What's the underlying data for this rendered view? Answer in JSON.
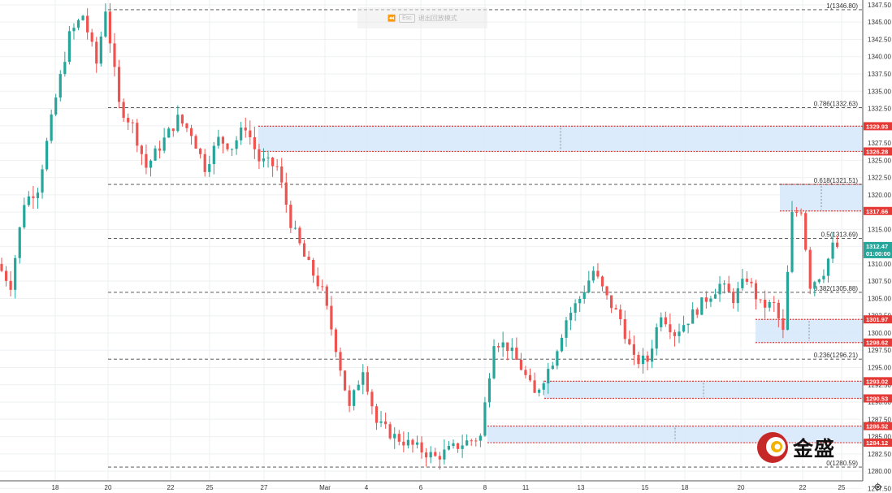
{
  "replay_banner": {
    "key_label": "Esc",
    "text": "退出回放模式"
  },
  "logo": {
    "text": "金盛"
  },
  "colors": {
    "up": "#26a69a",
    "down": "#ef5350",
    "zone_fill": "#d6e8fb",
    "zone_border": "#e53935",
    "tag_bg": "#e53935",
    "price_tag_bg": "#26a69a",
    "dashed": "#444444",
    "grid": "#eef0f2"
  },
  "chart_data": {
    "type": "candlestick",
    "y_axis": {
      "range": [
        1278.6,
        1348.2
      ],
      "ticks": [
        "1347.50",
        "1345.00",
        "1342.50",
        "1340.00",
        "1337.50",
        "1335.00",
        "1332.50",
        "1330.00",
        "1327.50",
        "1325.00",
        "1322.50",
        "1320.00",
        "1317.50",
        "1315.00",
        "1312.50",
        "1310.00",
        "1307.50",
        "1305.00",
        "1302.50",
        "1300.00",
        "1297.50",
        "1295.00",
        "1292.50",
        "1290.00",
        "1287.50",
        "1285.00",
        "1282.50",
        "1280.00",
        "1277.50"
      ]
    },
    "x_axis": {
      "ticks": [
        "18",
        "20",
        "22",
        "25",
        "27",
        "Mar",
        "4",
        "6",
        "8",
        "11",
        "13",
        "15",
        "18",
        "20",
        "22",
        "25"
      ]
    },
    "fibonacci": [
      {
        "label": "1(1346.80)",
        "value": 1346.8
      },
      {
        "label": "0.786(1332.63)",
        "value": 1332.63
      },
      {
        "label": "0.618(1321.51)",
        "value": 1321.51
      },
      {
        "label": "0.5(1313.69)",
        "value": 1313.69
      },
      {
        "label": "0.382(1305.88)",
        "value": 1305.88
      },
      {
        "label": "0.236(1296.21)",
        "value": 1296.21
      },
      {
        "label": "0(1280.59)",
        "value": 1280.59
      }
    ],
    "zones": [
      {
        "top": 1329.93,
        "bottom": 1326.28
      },
      {
        "top": 1321.51,
        "bottom": 1317.66
      },
      {
        "top": 1301.97,
        "bottom": 1298.62
      },
      {
        "top": 1293.02,
        "bottom": 1290.53
      },
      {
        "top": 1286.52,
        "bottom": 1284.12
      }
    ],
    "price_tags": [
      "1329.93",
      "1326.28",
      "1317.66",
      "1301.97",
      "1298.62",
      "1293.02",
      "1290.53",
      "1286.52",
      "1284.12"
    ],
    "current": {
      "price": "1312.47",
      "countdown": "01:00:00",
      "value": 1312.47
    },
    "path": [
      [
        0,
        1310
      ],
      [
        3,
        1307
      ],
      [
        6,
        1319
      ],
      [
        9,
        1321
      ],
      [
        13,
        1334
      ],
      [
        16,
        1343
      ],
      [
        19,
        1346
      ],
      [
        22,
        1339
      ],
      [
        24,
        1347
      ],
      [
        27,
        1333
      ],
      [
        30,
        1330
      ],
      [
        33,
        1324
      ],
      [
        36,
        1327
      ],
      [
        40,
        1331
      ],
      [
        43,
        1329
      ],
      [
        46,
        1324
      ],
      [
        49,
        1328
      ],
      [
        52,
        1327
      ],
      [
        55,
        1330
      ],
      [
        58,
        1325
      ],
      [
        62,
        1324
      ],
      [
        65,
        1316
      ],
      [
        68,
        1311
      ],
      [
        72,
        1306
      ],
      [
        75,
        1298
      ],
      [
        78,
        1289
      ],
      [
        81,
        1295
      ],
      [
        84,
        1287
      ],
      [
        88,
        1285
      ],
      [
        91,
        1284
      ],
      [
        94,
        1283
      ],
      [
        97,
        1282
      ],
      [
        100,
        1283
      ],
      [
        103,
        1284
      ],
      [
        107,
        1285
      ],
      [
        110,
        1299
      ],
      [
        113,
        1298
      ],
      [
        116,
        1295
      ],
      [
        119,
        1291
      ],
      [
        123,
        1296
      ],
      [
        126,
        1302
      ],
      [
        129,
        1305
      ],
      [
        132,
        1309
      ],
      [
        135,
        1305
      ],
      [
        138,
        1302
      ],
      [
        141,
        1296
      ],
      [
        144,
        1296
      ],
      [
        147,
        1303
      ],
      [
        150,
        1300
      ],
      [
        153,
        1302
      ],
      [
        157,
        1305
      ],
      [
        160,
        1307
      ],
      [
        163,
        1305
      ],
      [
        166,
        1308
      ],
      [
        169,
        1304
      ],
      [
        172,
        1304
      ],
      [
        174,
        1300
      ],
      [
        176,
        1317
      ],
      [
        178,
        1318
      ],
      [
        180,
        1307
      ],
      [
        183,
        1309
      ],
      [
        185,
        1312.47
      ]
    ]
  }
}
